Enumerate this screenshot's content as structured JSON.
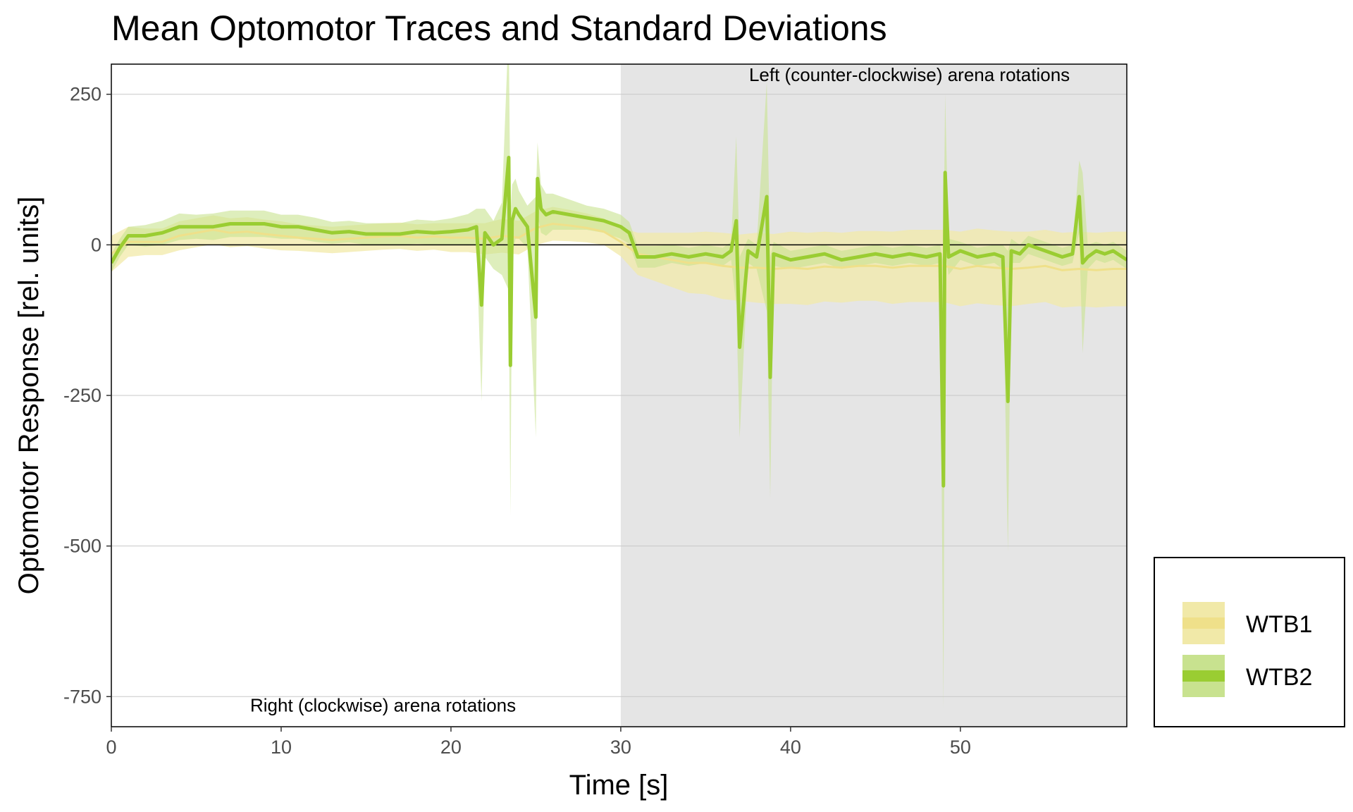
{
  "chart_data": {
    "type": "line",
    "title": "Mean Optomotor Traces and Standard Deviations",
    "xlabel": "Time [s]",
    "ylabel": "Optomotor Response [rel. units]",
    "xlim": [
      0,
      59.8
    ],
    "ylim": [
      -800,
      300
    ],
    "x_ticks": [
      0,
      10,
      20,
      30,
      40,
      50
    ],
    "x_tick_labels": [
      "0",
      "10",
      "20",
      "30",
      "40",
      "50"
    ],
    "y_ticks": [
      250,
      0,
      -250,
      -500,
      -750
    ],
    "y_tick_labels": [
      "250",
      "0",
      "-250",
      "-500",
      "-750"
    ],
    "grid": true,
    "reference_line_y": 0,
    "shaded_region": {
      "x": [
        30,
        59.8
      ],
      "color": "#e5e5e5"
    },
    "annotations": [
      {
        "text": "Left (counter-clockwise) arena rotations",
        "x": 47,
        "y": 272
      },
      {
        "text": "Right (clockwise) arena rotations",
        "x": 16,
        "y": -775
      }
    ],
    "legend_position": "right-bottom",
    "series": [
      {
        "name": "WTB1",
        "line_color": "#efe08a",
        "band_color": "#f1e9a8",
        "x": [
          0,
          1,
          2,
          3,
          4,
          5,
          6,
          7,
          8,
          9,
          10,
          11,
          12,
          13,
          14,
          15,
          16,
          17,
          18,
          19,
          20,
          21,
          22,
          23,
          24,
          25,
          26,
          27,
          28,
          29,
          30,
          31,
          32,
          33,
          34,
          35,
          36,
          37,
          38,
          39,
          40,
          41,
          42,
          43,
          44,
          45,
          46,
          47,
          48,
          49,
          50,
          51,
          52,
          53,
          54,
          55,
          56,
          57,
          58,
          59,
          59.8
        ],
        "mean": [
          -15,
          5,
          5,
          5,
          15,
          20,
          25,
          20,
          22,
          18,
          15,
          12,
          10,
          8,
          10,
          12,
          14,
          15,
          12,
          14,
          12,
          12,
          10,
          15,
          12,
          28,
          35,
          32,
          28,
          22,
          5,
          -15,
          -20,
          -25,
          -30,
          -30,
          -35,
          -38,
          -38,
          -40,
          -38,
          -40,
          -36,
          -38,
          -35,
          -35,
          -38,
          -35,
          -35,
          -35,
          -40,
          -35,
          -38,
          -40,
          -38,
          -35,
          -42,
          -40,
          -42,
          -40,
          -40
        ],
        "sd": [
          30,
          25,
          22,
          22,
          24,
          24,
          24,
          24,
          24,
          24,
          24,
          22,
          22,
          22,
          22,
          22,
          22,
          22,
          22,
          22,
          24,
          24,
          26,
          28,
          28,
          28,
          28,
          26,
          24,
          22,
          24,
          35,
          40,
          45,
          50,
          52,
          55,
          55,
          58,
          58,
          60,
          60,
          58,
          58,
          58,
          58,
          60,
          60,
          60,
          60,
          62,
          62,
          62,
          62,
          60,
          60,
          62,
          62,
          62,
          62,
          62
        ]
      },
      {
        "name": "WTB2",
        "line_color": "#9acd32",
        "band_color": "#c8e28f",
        "x": [
          0,
          0.5,
          1,
          2,
          3,
          4,
          5,
          6,
          7,
          8,
          9,
          10,
          11,
          12,
          13,
          14,
          15,
          16,
          17,
          18,
          19,
          20,
          21,
          21.5,
          21.8,
          22,
          22.5,
          23,
          23.4,
          23.5,
          23.6,
          23.8,
          24,
          24.5,
          25,
          25.1,
          25.3,
          25.6,
          26,
          27,
          28,
          29,
          30,
          30.5,
          31,
          32,
          33,
          34,
          35,
          36,
          36.5,
          36.8,
          37,
          37.5,
          38,
          38.6,
          38.8,
          39,
          40,
          41,
          42,
          43,
          44,
          45,
          46,
          47,
          48,
          48.8,
          49,
          49.1,
          49.3,
          50,
          51,
          52,
          52.5,
          52.8,
          53,
          53.5,
          54,
          55,
          56,
          56.6,
          57,
          57.2,
          57.5,
          58,
          58.5,
          59,
          59.8
        ],
        "mean": [
          -30,
          -5,
          15,
          15,
          20,
          30,
          30,
          30,
          35,
          35,
          35,
          30,
          30,
          25,
          20,
          22,
          18,
          18,
          18,
          22,
          20,
          22,
          25,
          30,
          -100,
          20,
          0,
          10,
          145,
          -200,
          40,
          60,
          50,
          30,
          -120,
          110,
          60,
          50,
          55,
          50,
          45,
          40,
          30,
          20,
          -20,
          -20,
          -15,
          -20,
          -15,
          -20,
          -10,
          40,
          -170,
          -10,
          -20,
          80,
          -220,
          -15,
          -25,
          -20,
          -15,
          -25,
          -20,
          -15,
          -20,
          -15,
          -20,
          -15,
          -400,
          120,
          -20,
          -10,
          -20,
          -15,
          -20,
          -260,
          -10,
          -15,
          0,
          -10,
          -20,
          -15,
          80,
          -30,
          -20,
          -10,
          -15,
          -10,
          -25
        ],
        "sd": [
          15,
          15,
          15,
          18,
          20,
          22,
          20,
          22,
          22,
          22,
          22,
          20,
          20,
          20,
          18,
          18,
          18,
          18,
          18,
          20,
          20,
          22,
          26,
          30,
          160,
          40,
          40,
          60,
          220,
          250,
          60,
          50,
          40,
          35,
          200,
          60,
          40,
          35,
          30,
          25,
          20,
          20,
          20,
          18,
          18,
          18,
          15,
          15,
          15,
          15,
          15,
          140,
          150,
          20,
          20,
          190,
          200,
          20,
          15,
          15,
          15,
          15,
          15,
          15,
          15,
          15,
          15,
          15,
          370,
          130,
          30,
          15,
          15,
          15,
          20,
          250,
          20,
          15,
          15,
          15,
          15,
          15,
          60,
          150,
          20,
          15,
          15,
          15,
          15
        ]
      }
    ]
  }
}
